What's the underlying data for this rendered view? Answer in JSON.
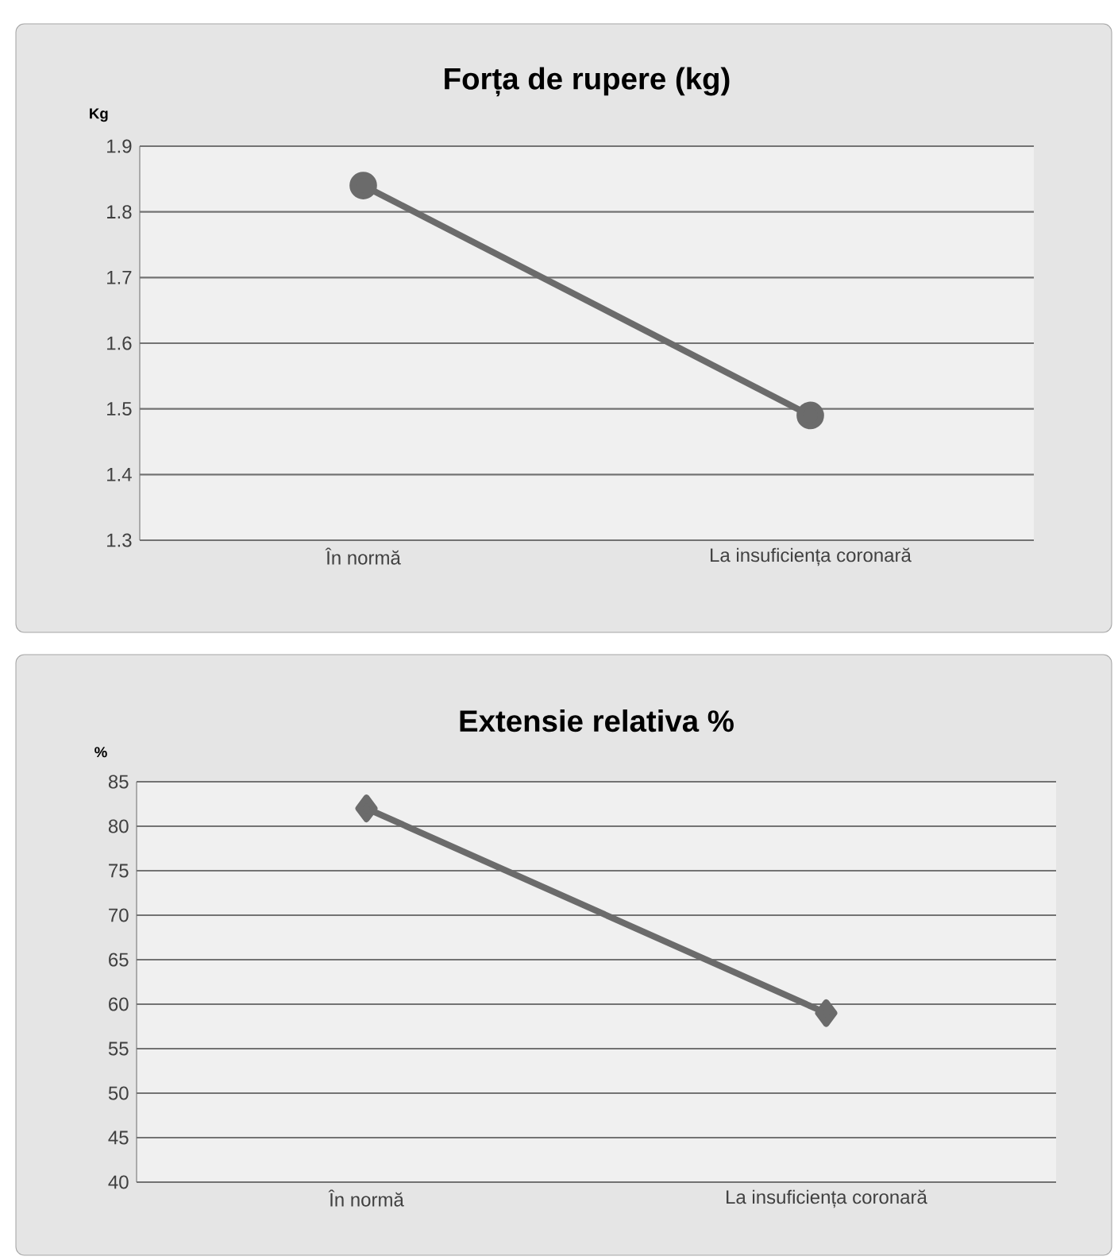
{
  "chart_data": [
    {
      "type": "line",
      "title": "Forța de rupere (kg)",
      "ylabel": "Kg",
      "categories": [
        "În normă",
        "La insuficiența coronară"
      ],
      "series": [
        {
          "color": "#6b6b6b",
          "values": [
            1.84,
            1.49
          ]
        }
      ],
      "ylim": [
        1.3,
        1.9
      ],
      "yticks": [
        1.3,
        1.4,
        1.5,
        1.6,
        1.7,
        1.8,
        1.9
      ],
      "grid": "y",
      "marker": "circle",
      "line_style": "solid"
    },
    {
      "type": "line",
      "title": "Extensie relativa %",
      "ylabel": "%",
      "categories": [
        "În normă",
        "La insuficiența coronară"
      ],
      "series": [
        {
          "color": "#6b6b6b",
          "values": [
            82,
            59
          ]
        }
      ],
      "ylim": [
        40,
        85
      ],
      "yticks": [
        40,
        45,
        50,
        55,
        60,
        65,
        70,
        75,
        80,
        85
      ],
      "grid": "y",
      "marker": "diamond",
      "line_style": "solid"
    }
  ]
}
